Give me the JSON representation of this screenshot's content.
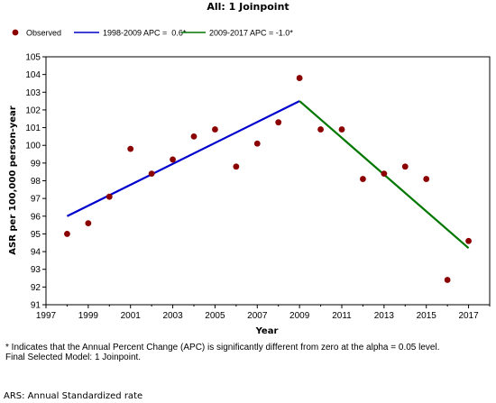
{
  "chart_data": {
    "type": "line",
    "title": "All: 1 Joinpoint",
    "xlabel": "Year",
    "ylabel": "ASR per 100,000 person-year",
    "xlim": [
      1997,
      2018
    ],
    "ylim": [
      91,
      105
    ],
    "xticks": [
      1997,
      1999,
      2001,
      2003,
      2005,
      2007,
      2009,
      2011,
      2013,
      2015,
      2017
    ],
    "yticks": [
      91,
      92,
      93,
      94,
      95,
      96,
      97,
      98,
      99,
      100,
      101,
      102,
      103,
      104,
      105
    ],
    "xtick_labels": [
      "1997",
      "1999",
      "2001",
      "2003",
      "2005",
      "2007",
      "2009",
      "2011",
      "2013",
      "2015",
      "2017"
    ],
    "ytick_labels": [
      "91",
      "92",
      "93",
      "94",
      "95",
      "96",
      "97",
      "98",
      "99",
      "100",
      "101",
      "102",
      "103",
      "104",
      "105"
    ],
    "grid": false,
    "legend_position": "top",
    "series": [
      {
        "name": "Observed",
        "kind": "scatter",
        "color": "#8b0000",
        "x": [
          1998,
          1999,
          2000,
          2001,
          2002,
          2003,
          2004,
          2005,
          2006,
          2007,
          2008,
          2009,
          2010,
          2011,
          2012,
          2013,
          2014,
          2015,
          2016,
          2017
        ],
        "y": [
          95.0,
          95.6,
          97.1,
          99.8,
          98.4,
          99.2,
          100.5,
          100.9,
          98.8,
          100.1,
          101.3,
          103.8,
          100.9,
          100.9,
          98.1,
          98.4,
          98.8,
          98.1,
          92.4,
          94.6
        ]
      },
      {
        "name": "1998-2009 APC =  0.6*",
        "kind": "line",
        "color": "#0000cc",
        "x": [
          1998,
          2009
        ],
        "y": [
          96.0,
          102.5
        ]
      },
      {
        "name": "2009-2017 APC = -1.0*",
        "kind": "line",
        "color": "#007700",
        "x": [
          2009,
          2017
        ],
        "y": [
          102.5,
          94.2
        ]
      }
    ]
  },
  "footnotes": {
    "apc_note": "* Indicates that the Annual Percent Change (APC) is significantly different from zero at the alpha = 0.05 level.",
    "model_note": "Final Selected Model: 1 Joinpoint.",
    "ars_note": "ARS: Annual Standardized rate"
  }
}
